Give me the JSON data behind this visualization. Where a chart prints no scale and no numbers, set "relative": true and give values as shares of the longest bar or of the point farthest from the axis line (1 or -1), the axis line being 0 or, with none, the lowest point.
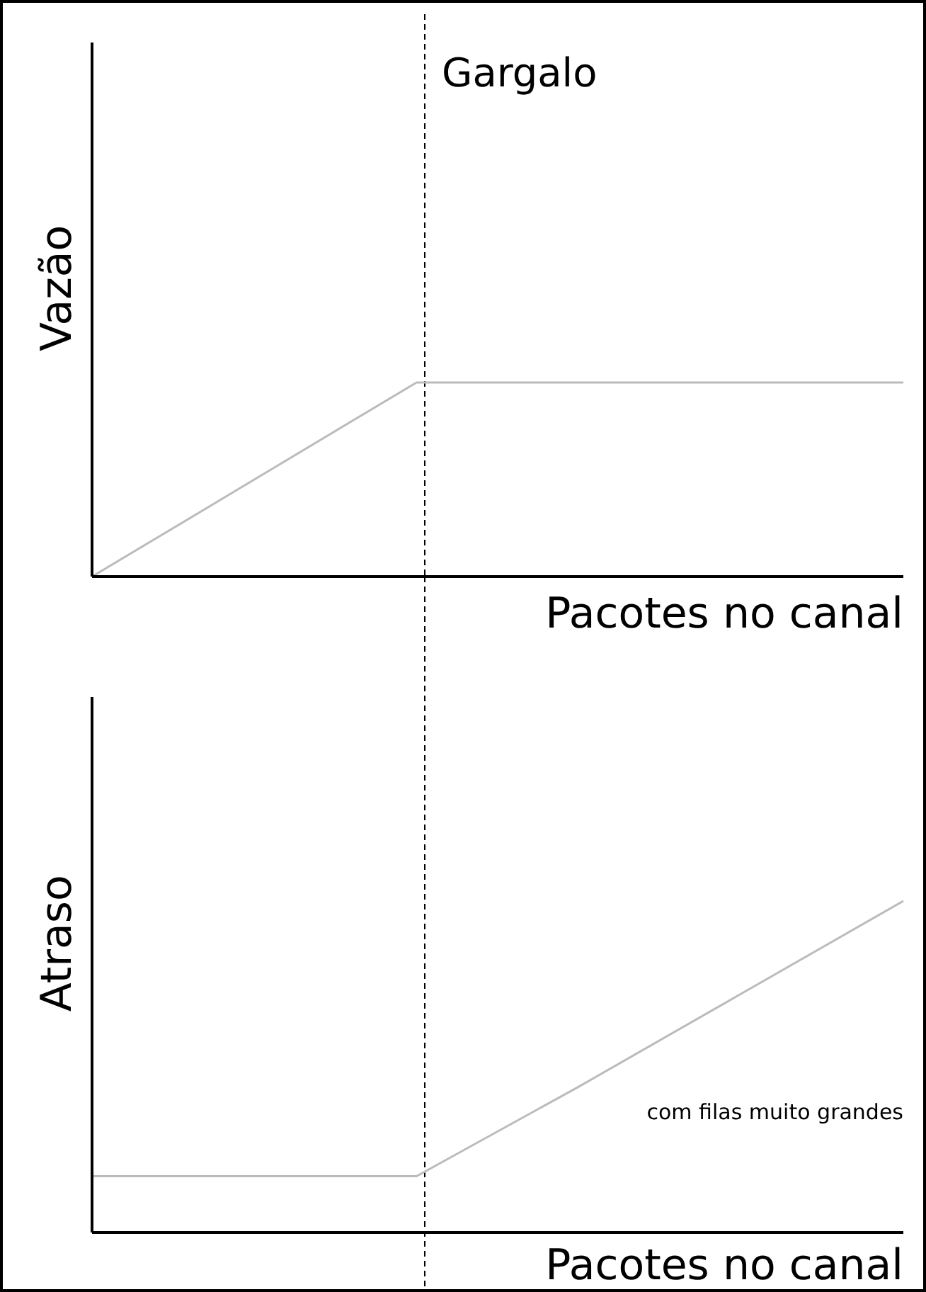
{
  "chart_data": [
    {
      "type": "line",
      "relative": true,
      "categories": [
        null,
        null,
        null,
        null,
        null,
        null
      ],
      "ylabel": "Vazão",
      "xlabel": "Pacotes no canal",
      "marker": "none",
      "line_style": "solid",
      "series": [
        {
          "color": "#bbbbbb",
          "values": [
            0,
            0.5,
            1,
            1,
            1,
            1
          ]
        }
      ],
      "annotations": [
        "Gargalo"
      ]
    },
    {
      "type": "line",
      "relative": true,
      "categories": [
        null,
        null,
        null,
        null,
        null,
        null
      ],
      "ylabel": "Atraso",
      "xlabel": "Pacotes no canal",
      "marker": "none",
      "line_style": "solid",
      "series": [
        {
          "color": "#bbbbbb",
          "values": [
            0.17,
            0.17,
            0.17,
            0.44,
            0.72,
            1
          ]
        }
      ],
      "annotations": [
        "com filas muito grandes"
      ]
    }
  ]
}
